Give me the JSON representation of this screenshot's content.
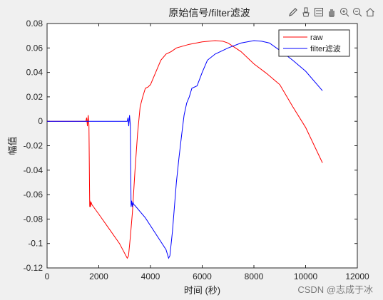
{
  "figure": {
    "title": "原始信号/filter滤波",
    "toolbar_icons": [
      "edit-icon",
      "brush-icon",
      "legend-icon",
      "pan-icon",
      "zoom-in-icon",
      "zoom-out-icon",
      "home-icon"
    ],
    "watermark": "CSDN @志成于冰"
  },
  "chart_data": {
    "type": "line",
    "title": "原始信号/filter滤波",
    "xlabel": "时间 (秒)",
    "ylabel": "幅值",
    "xlim": [
      0,
      12000
    ],
    "ylim": [
      -0.12,
      0.08
    ],
    "xticks": [
      0,
      2000,
      4000,
      6000,
      8000,
      10000,
      12000
    ],
    "yticks": [
      -0.12,
      -0.1,
      -0.08,
      -0.06,
      -0.04,
      -0.02,
      0,
      0.02,
      0.04,
      0.06,
      0.08
    ],
    "xtick_labels": [
      "0",
      "2000",
      "4000",
      "6000",
      "8000",
      "10000",
      "12000"
    ],
    "ytick_labels": [
      "-0.12",
      "-0.1",
      "-0.08",
      "-0.06",
      "-0.04",
      "-0.02",
      "0",
      "0.02",
      "0.04",
      "0.06",
      "0.08"
    ],
    "grid": false,
    "legend_position": "top-right",
    "series": [
      {
        "name": "raw",
        "color": "#ff0000",
        "x": [
          0,
          1500,
          1530,
          1560,
          1590,
          1620,
          1650,
          1660,
          1680,
          1700,
          1730,
          1760,
          2000,
          2400,
          2800,
          3100,
          3150,
          3220,
          3300,
          3400,
          3500,
          3600,
          3700,
          3800,
          3900,
          4000,
          4200,
          4400,
          4600,
          4800,
          5000,
          5500,
          6000,
          6500,
          6800,
          7000,
          7500,
          8000,
          8500,
          9000,
          9500,
          10000,
          10650
        ],
        "y": [
          0,
          0,
          0.003,
          -0.004,
          0.005,
          -0.003,
          -0.07,
          -0.065,
          -0.07,
          -0.066,
          -0.068,
          -0.069,
          -0.076,
          -0.088,
          -0.1,
          -0.112,
          -0.11,
          -0.095,
          -0.075,
          -0.04,
          -0.01,
          0.012,
          0.02,
          0.027,
          0.028,
          0.03,
          0.04,
          0.05,
          0.055,
          0.057,
          0.06,
          0.063,
          0.065,
          0.066,
          0.0655,
          0.064,
          0.057,
          0.047,
          0.039,
          0.03,
          0.012,
          -0.005,
          -0.034
        ]
      },
      {
        "name": "filter滤波",
        "color": "#0000ff",
        "x": [
          0,
          3100,
          3130,
          3160,
          3190,
          3220,
          3250,
          3270,
          3300,
          3320,
          3350,
          3400,
          3800,
          4200,
          4600,
          4700,
          4750,
          4850,
          5000,
          5100,
          5200,
          5300,
          5400,
          5500,
          5600,
          5800,
          6000,
          6200,
          6500,
          7000,
          7500,
          8000,
          8300,
          8600,
          9000,
          9500,
          10000,
          10650
        ],
        "y": [
          0,
          0,
          0.003,
          -0.004,
          0.005,
          -0.003,
          -0.07,
          -0.065,
          -0.07,
          -0.066,
          -0.068,
          -0.069,
          -0.079,
          -0.092,
          -0.105,
          -0.112,
          -0.11,
          -0.09,
          -0.05,
          -0.03,
          -0.012,
          0.005,
          0.015,
          0.02,
          0.027,
          0.029,
          0.04,
          0.05,
          0.055,
          0.06,
          0.064,
          0.066,
          0.0655,
          0.064,
          0.058,
          0.05,
          0.041,
          0.025
        ]
      }
    ]
  }
}
